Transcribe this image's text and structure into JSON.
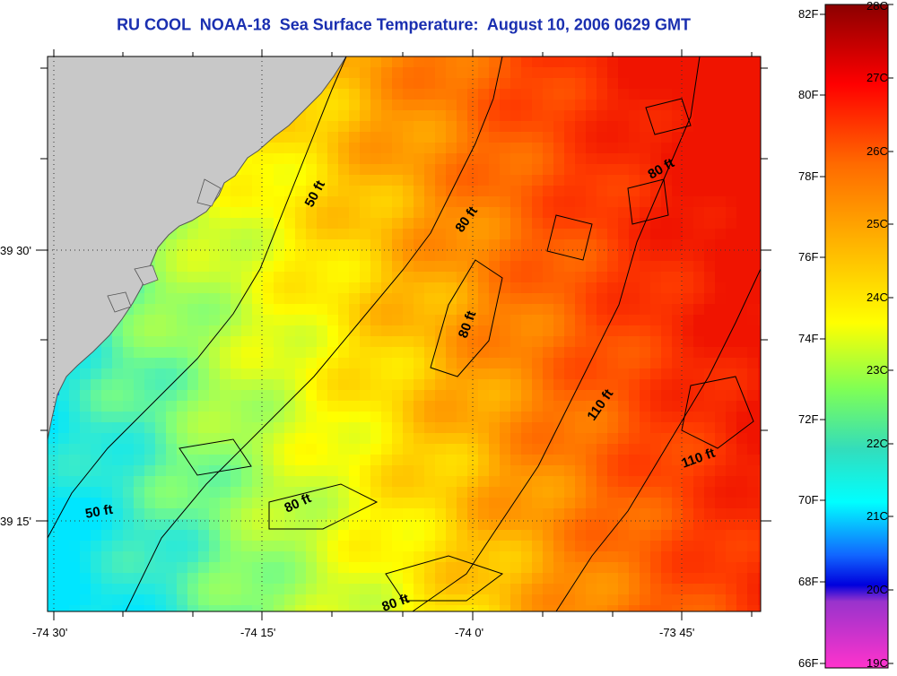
{
  "title": "RU COOL  NOAA-18  Sea Surface Temperature:  August 10, 2006 0629 GMT",
  "map": {
    "lon_ticks": [
      "-74 30'",
      "-74 15'",
      "-74 0'",
      "-73 45'"
    ],
    "lat_ticks": [
      "39 30'",
      "39 15'"
    ],
    "contour_labels": [
      "50 ft",
      "50 ft",
      "80 ft",
      "80 ft",
      "80 ft",
      "80 ft",
      "80 ft",
      "110 ft",
      "110 ft"
    ]
  },
  "colorbar": {
    "fahrenheit_labels": [
      "82F",
      "80F",
      "78F",
      "76F",
      "74F",
      "72F",
      "70F",
      "68F",
      "66F"
    ],
    "celsius_labels": [
      "28C",
      "27C",
      "26C",
      "25C",
      "24C",
      "23C",
      "22C",
      "21C",
      "20C",
      "19C"
    ],
    "colors": [
      "#8b0000",
      "#ff0000",
      "#ff6a00",
      "#ffaa00",
      "#ffff00",
      "#7fff55",
      "#33ddbb",
      "#00ffff",
      "#1166ff",
      "#0000dd",
      "#9933cc",
      "#ff33cc"
    ]
  },
  "land_color": "#c8c8c8"
}
